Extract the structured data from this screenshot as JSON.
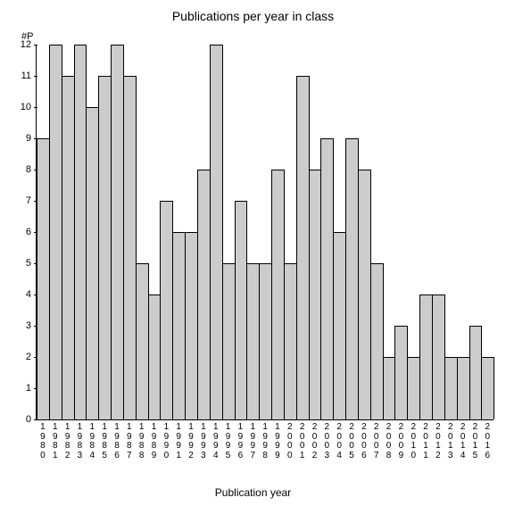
{
  "chart": {
    "type": "bar",
    "title": "Publications per year in class",
    "title_fontsize": 14,
    "x_axis_label": "Publication year",
    "y_axis_label": "#P",
    "label_fontsize": 12,
    "tick_fontsize": 11,
    "background_color": "#ffffff",
    "bar_fill_color": "#cccccc",
    "bar_border_color": "#000000",
    "axis_color": "#000000",
    "ylim": [
      0,
      12
    ],
    "ytick_step": 1,
    "yticks": [
      0,
      1,
      2,
      3,
      4,
      5,
      6,
      7,
      8,
      9,
      10,
      11,
      12
    ],
    "categories": [
      "1980",
      "1981",
      "1982",
      "1983",
      "1984",
      "1985",
      "1986",
      "1987",
      "1988",
      "1989",
      "1990",
      "1991",
      "1992",
      "1993",
      "1994",
      "1995",
      "1996",
      "1997",
      "1998",
      "1999",
      "2000",
      "2001",
      "2002",
      "2003",
      "2004",
      "2005",
      "2006",
      "2007",
      "2008",
      "2009",
      "2010",
      "2011",
      "2012",
      "2013",
      "2014",
      "2015",
      "2016"
    ],
    "values": [
      9,
      12,
      11,
      12,
      10,
      11,
      12,
      11,
      5,
      4,
      7,
      6,
      6,
      8,
      12,
      5,
      7,
      5,
      5,
      8,
      5,
      11,
      8,
      9,
      6,
      9,
      8,
      5,
      2,
      3,
      2,
      4,
      4,
      2,
      2,
      3,
      2
    ],
    "bar_width": 1.0
  }
}
